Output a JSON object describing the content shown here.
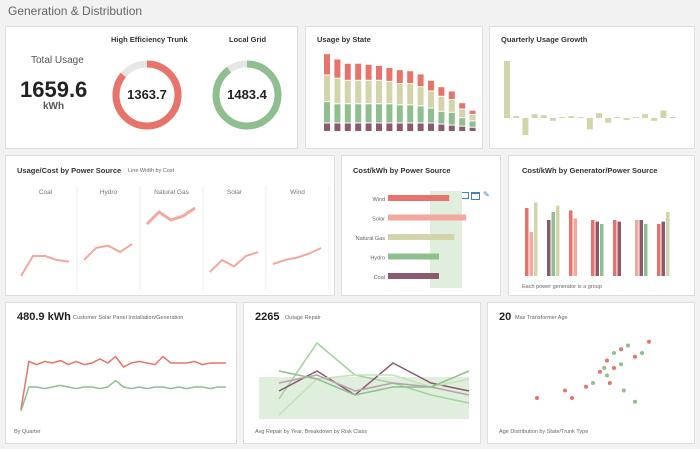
{
  "page_title": "Generation & Distribution",
  "total_usage": {
    "label": "Total Usage",
    "value": "1659.6",
    "unit": "kWh"
  },
  "gauges": [
    {
      "title": "High Efficiency Trunk",
      "value": "1363.7",
      "fraction": 0.86,
      "color": "#e8736b"
    },
    {
      "title": "Local Grid",
      "value": "1483.4",
      "fraction": 0.9,
      "color": "#8fbf8f"
    }
  ],
  "usage_by_state": {
    "title": "Usage by State"
  },
  "quarterly": {
    "title": "Quarterly Usage Growth"
  },
  "usage_cost": {
    "title": "Usage/Cost by Power Source",
    "subtitle": "Line Width by Cost",
    "panels": [
      "Coal",
      "Hydro",
      "Natural Gas",
      "Solar",
      "Wind"
    ]
  },
  "cost_kwh": {
    "title": "Cost/kWh by Power Source",
    "icons": [
      "image-icon",
      "window-icon",
      "edit-icon"
    ]
  },
  "cost_generator": {
    "title": "Cost/kWh by Generator/Power Source",
    "footnote": "Each power generator is a group"
  },
  "solar": {
    "value": "480.9 kWh",
    "label": "Customer Solar Panel Installation/Generation",
    "footnote": "By Quarter"
  },
  "outage": {
    "value": "2265",
    "label": "Outage Repair",
    "footnote": "Avg Repair by Year, Breakdown by Risk Class"
  },
  "transformer": {
    "value": "20",
    "label": "Max Transformer Age",
    "footnote": "Age Distribution by State/Trunk Type"
  },
  "chart_data": [
    {
      "type": "bar",
      "title": "Usage by State",
      "series_colors": [
        "#8c5a6e",
        "#8fbf8f",
        "#d4d4aa",
        "#e8736b"
      ],
      "stacks": [
        [
          8,
          20,
          25,
          20
        ],
        [
          8,
          18,
          24,
          18
        ],
        [
          8,
          18,
          22,
          16
        ],
        [
          8,
          18,
          22,
          16
        ],
        [
          8,
          18,
          22,
          15
        ],
        [
          8,
          18,
          22,
          14
        ],
        [
          8,
          18,
          21,
          13
        ],
        [
          8,
          17,
          20,
          13
        ],
        [
          8,
          17,
          20,
          12
        ],
        [
          8,
          16,
          18,
          12
        ],
        [
          8,
          14,
          16,
          10
        ],
        [
          7,
          12,
          14,
          9
        ],
        [
          6,
          12,
          12,
          8
        ],
        [
          5,
          8,
          8,
          6
        ],
        [
          4,
          6,
          6,
          4
        ]
      ]
    },
    {
      "type": "bar",
      "title": "Quarterly Usage Growth",
      "values": [
        60,
        2,
        -18,
        4,
        3,
        -3,
        0,
        2,
        1,
        -12,
        5,
        -5,
        0,
        -2,
        0,
        4,
        -3,
        8,
        0
      ]
    },
    {
      "type": "line",
      "title": "Usage/Cost by Power Source",
      "categories": [
        "Coal",
        "Hydro",
        "Natural Gas",
        "Solar",
        "Wind"
      ],
      "series": [
        {
          "values": [
            0.1,
            0.35,
            0.35,
            0.3,
            0.28
          ]
        },
        {
          "values": [
            0.3,
            0.45,
            0.48,
            0.4,
            0.5
          ]
        },
        {
          "values": [
            0.75,
            0.9,
            0.8,
            0.85,
            0.95
          ]
        },
        {
          "values": [
            0.15,
            0.3,
            0.22,
            0.35,
            0.4
          ]
        },
        {
          "values": [
            0.25,
            0.3,
            0.33,
            0.38,
            0.45
          ]
        }
      ]
    },
    {
      "type": "bar",
      "title": "Cost/kWh by Power Source",
      "categories": [
        "Wind",
        "Solar",
        "Natural Gas",
        "Hydro",
        "Coal"
      ],
      "values": [
        0.72,
        0.92,
        0.78,
        0.6,
        0.6
      ],
      "colors": [
        "#e8736b",
        "#f2a89f",
        "#d4d4aa",
        "#8fbf8f",
        "#8c5a6e"
      ]
    },
    {
      "type": "bar",
      "title": "Cost/kWh by Generator/Power Source",
      "series_colors": [
        "#e8736b",
        "#f2a89f",
        "#8c5a6e",
        "#8fbf8f",
        "#d4d4aa"
      ],
      "groups": [
        [
          0.85,
          0.55,
          null,
          null,
          0.92
        ],
        [
          null,
          null,
          0.7,
          0.8,
          0.88
        ],
        [
          0.82,
          0.72,
          null,
          null,
          null
        ],
        [
          0.7,
          null,
          0.68,
          0.65,
          null
        ],
        [
          0.7,
          null,
          0.68,
          null,
          null
        ],
        [
          null,
          0.7,
          0.7,
          0.65,
          null
        ],
        [
          0.65,
          null,
          0.68,
          null,
          0.8
        ]
      ]
    },
    {
      "type": "line",
      "title": "Customer Solar Panel Installation/Generation",
      "series": [
        {
          "color": "#e8736b",
          "values": [
            0.02,
            0.62,
            0.58,
            0.62,
            0.6,
            0.63,
            0.58,
            0.62,
            0.58,
            0.6,
            0.65,
            0.6,
            0.68,
            0.55,
            0.6,
            0.62,
            0.6,
            0.58,
            0.68,
            0.6,
            0.6,
            0.6,
            0.62,
            0.58,
            0.6,
            0.6,
            0.6
          ]
        },
        {
          "color": "#8fbf8f",
          "values": [
            0.0,
            0.3,
            0.3,
            0.28,
            0.3,
            0.32,
            0.3,
            0.28,
            0.3,
            0.3,
            0.28,
            0.3,
            0.38,
            0.3,
            0.28,
            0.3,
            0.28,
            0.3,
            0.3,
            0.28,
            0.3,
            0.28,
            0.3,
            0.3,
            0.28,
            0.3,
            0.3
          ]
        }
      ]
    },
    {
      "type": "line",
      "title": "Outage Repair",
      "series": [
        {
          "color": "#a3d39c",
          "values": [
            0.25,
            0.95,
            0.55,
            0.45,
            0.3,
            0.2
          ]
        },
        {
          "color": "#8c5a6e",
          "values": [
            0.35,
            0.6,
            0.3,
            0.7,
            0.45,
            0.35
          ]
        },
        {
          "color": "#c6e0b8",
          "values": [
            0.05,
            0.5,
            0.55,
            0.55,
            0.4,
            0.5
          ]
        },
        {
          "color": "#b9a0a8",
          "values": [
            0.45,
            0.55,
            0.35,
            0.45,
            0.4,
            0.3
          ]
        },
        {
          "color": "#8fbf8f",
          "values": [
            0.6,
            0.5,
            0.3,
            0.4,
            0.4,
            0.6
          ]
        }
      ]
    },
    {
      "type": "scatter",
      "title": "Max Transformer Age",
      "series": [
        {
          "color": "#e8736b",
          "points": [
            [
              0.1,
              0.2
            ],
            [
              0.3,
              0.3
            ],
            [
              0.35,
              0.2
            ],
            [
              0.45,
              0.35
            ],
            [
              0.55,
              0.55
            ],
            [
              0.6,
              0.7
            ],
            [
              0.65,
              0.6
            ],
            [
              0.7,
              0.85
            ],
            [
              0.8,
              0.75
            ],
            [
              0.9,
              0.95
            ],
            [
              0.62,
              0.4
            ]
          ]
        },
        {
          "color": "#8fbf8f",
          "points": [
            [
              0.5,
              0.4
            ],
            [
              0.6,
              0.5
            ],
            [
              0.65,
              0.8
            ],
            [
              0.7,
              0.65
            ],
            [
              0.75,
              0.9
            ],
            [
              0.85,
              0.8
            ],
            [
              0.72,
              0.3
            ],
            [
              0.8,
              0.15
            ],
            [
              0.58,
              0.6
            ]
          ]
        }
      ]
    }
  ]
}
